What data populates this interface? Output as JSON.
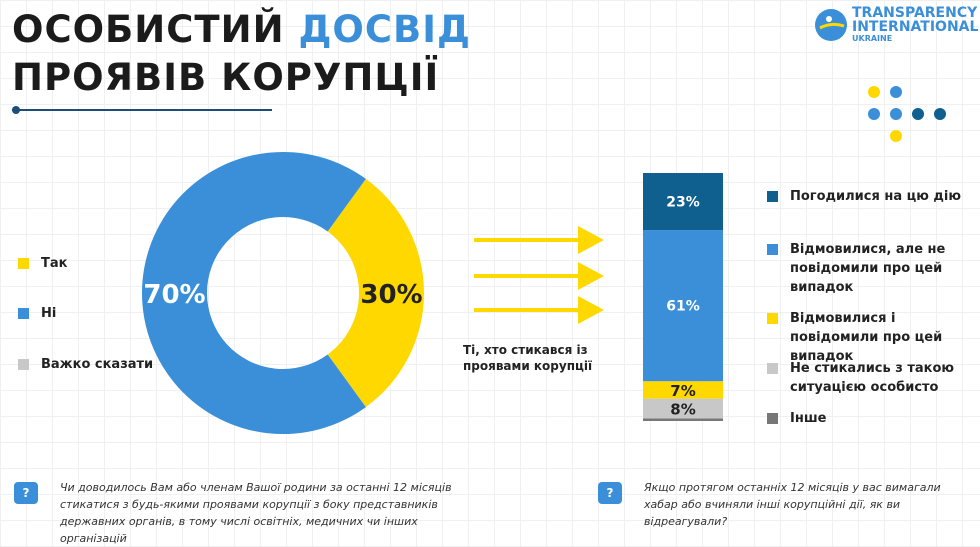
{
  "header": {
    "title_line1_a": "ОСОБИСТИЙ",
    "title_line1_b": "ДОСВІД",
    "title_line2": "ПРОЯВІВ КОРУПЦІЇ"
  },
  "logo": {
    "line1": "TRANSPARENCY",
    "line2": "INTERNATIONAL",
    "line3": "UKRAINE"
  },
  "caption": "Ті, хто стикався із проявами корупції",
  "notes": {
    "left": "Чи доводилось Вам або членам Вашої родини за останні 12 місяців стикатися з будь-якими проявами корупції з боку представників державних органів, в тому числі освітніх, медичних чи інших організацій",
    "right": "Якщо протягом останніх 12 місяців у вас вимагали хабар або вчиняли інші корупційні дії, як ви відреагували?",
    "icon": "question-chat-icon"
  },
  "chart_data": [
    {
      "type": "pie",
      "variant": "donut",
      "categories": [
        "Так",
        "Ні",
        "Важко сказати"
      ],
      "values": [
        30,
        70,
        0
      ],
      "labels": [
        "30%",
        "70%",
        ""
      ],
      "colors": [
        "#ffd800",
        "#3a8fd8",
        "#c8c8c8"
      ],
      "legend": "left"
    },
    {
      "type": "bar",
      "variant": "stacked-100",
      "categories": [
        "Погодилися на цю дію",
        "Відмовилися, але не повідомили про цей випадок",
        "Відмовилися і повідомили про цей випадок",
        "Не стикались з такою ситуацією особисто",
        "Інше"
      ],
      "values": [
        23,
        61,
        7,
        8,
        1
      ],
      "labels": [
        "23%",
        "61%",
        "7%",
        "8%",
        ""
      ],
      "colors": [
        "#0f5f8f",
        "#3a8fd8",
        "#ffd800",
        "#c8c8c8",
        "#777777"
      ],
      "legend": "right"
    }
  ]
}
